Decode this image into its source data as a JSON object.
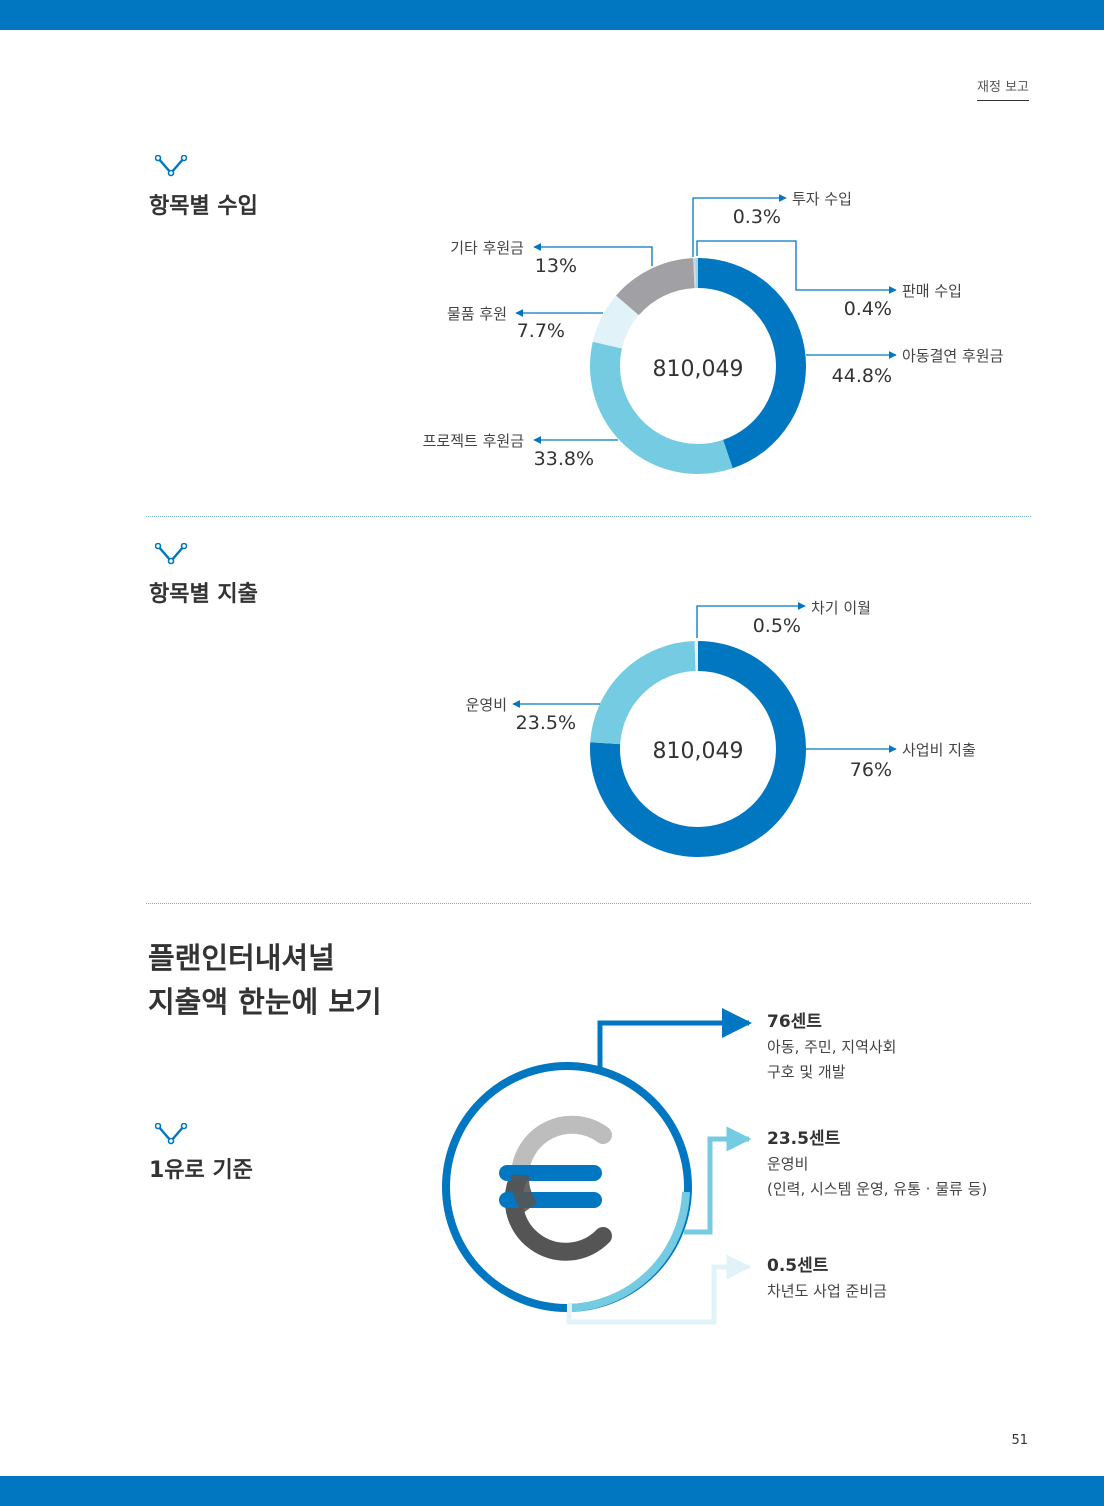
{
  "header": {
    "section_label": "재정 보고",
    "page_number": "51"
  },
  "income": {
    "title": "항목별 수입",
    "total": "810,049",
    "items": [
      {
        "name": "아동결연 후원금",
        "percent": "44.8%",
        "value": 44.8,
        "color": "#0077c0"
      },
      {
        "name": "프로젝트 후원금",
        "percent": "33.8%",
        "value": 33.8,
        "color": "#74cbe2"
      },
      {
        "name": "물품 후원",
        "percent": "7.7%",
        "value": 7.7,
        "color": "#e1f3f8"
      },
      {
        "name": "기타 후원금",
        "percent": "13%",
        "value": 13,
        "color": "#a0a0a5"
      },
      {
        "name": "투자 수입",
        "percent": "0.3%",
        "value": 0.3,
        "color": "#d7d7dc"
      },
      {
        "name": "판매 수입",
        "percent": "0.4%",
        "value": 0.4,
        "color": "#9bd7ea"
      }
    ]
  },
  "expense": {
    "title": "항목별 지출",
    "total": "810,049",
    "items": [
      {
        "name": "사업비 지출",
        "percent": "76%",
        "value": 76,
        "color": "#0077c0"
      },
      {
        "name": "운영비",
        "percent": "23.5%",
        "value": 23.5,
        "color": "#74cbe2"
      },
      {
        "name": "차기 이월",
        "percent": "0.5%",
        "value": 0.5,
        "color": "#e1f3f8"
      }
    ]
  },
  "summary": {
    "title_line1": "플랜인터내셔널",
    "title_line2": "지출액 한눈에 보기",
    "basis_label": "1유로 기준",
    "items": [
      {
        "amount": "76센트",
        "desc_line1": "아동, 주민, 지역사회",
        "desc_line2": "구호 및 개발"
      },
      {
        "amount": "23.5센트",
        "desc_line1": "운영비",
        "desc_line2": "(인력, 시스템 운영, 유통 · 물류 등)"
      },
      {
        "amount": "0.5센트",
        "desc_line1": "차년도 사업 준비금",
        "desc_line2": ""
      }
    ]
  },
  "icons": {
    "section_marker": "chevron-node-icon",
    "euro_symbol": "euro-icon"
  }
}
